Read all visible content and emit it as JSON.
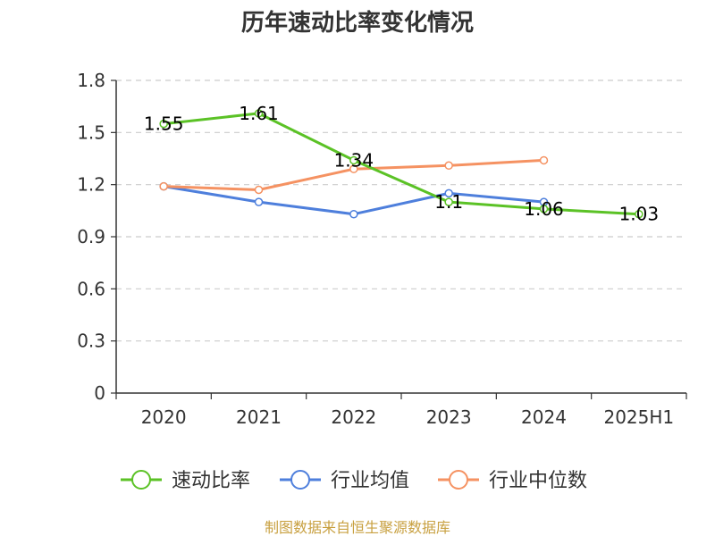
{
  "chart_data": {
    "type": "line",
    "title": "历年速动比率变化情况",
    "categories": [
      "2020",
      "2021",
      "2022",
      "2023",
      "2024",
      "2025H1"
    ],
    "ylim": [
      0,
      1.8
    ],
    "yticks": [
      "0",
      "0.3",
      "0.6",
      "0.9",
      "1.2",
      "1.5",
      "1.8"
    ],
    "grid": true,
    "legend_position": "bottom",
    "series": [
      {
        "name": "速动比率",
        "color": "#5bc226",
        "values": [
          1.55,
          1.61,
          1.34,
          1.1,
          1.06,
          1.03
        ],
        "labels": [
          "1.55",
          "1.61",
          "1.34",
          "1.1",
          "1.06",
          "1.03"
        ]
      },
      {
        "name": "行业均值",
        "color": "#4e7fdc",
        "values": [
          1.19,
          1.1,
          1.03,
          1.15,
          1.1,
          null
        ]
      },
      {
        "name": "行业中位数",
        "color": "#f59262",
        "values": [
          1.19,
          1.17,
          1.29,
          1.31,
          1.34,
          null
        ]
      }
    ],
    "source": "制图数据来自恒生聚源数据库"
  }
}
